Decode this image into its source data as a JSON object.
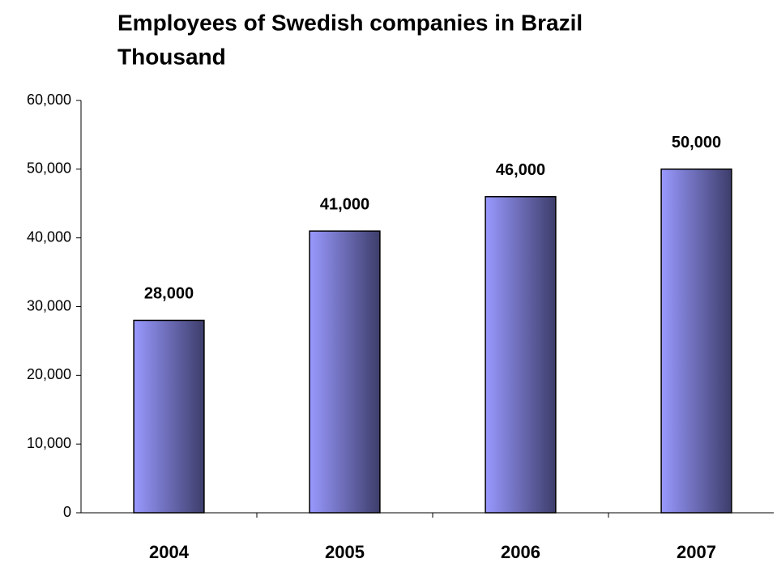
{
  "chart_data": {
    "type": "bar",
    "title": "Employees of Swedish companies in Brazil",
    "subtitle": "Thousand",
    "categories": [
      "2004",
      "2005",
      "2006",
      "2007"
    ],
    "values": [
      28000,
      41000,
      46000,
      50000
    ],
    "value_labels": [
      "28,000",
      "41,000",
      "46,000",
      "50,000"
    ],
    "color": "#9999ff",
    "ylim": [
      0,
      60000
    ],
    "yticks": [
      0,
      {
        "value": 10000,
        "label": "10,000"
      },
      {
        "value": 20000,
        "label": "20,000"
      },
      {
        "value": 30000,
        "label": "30,000"
      },
      {
        "value": 40000,
        "label": "40,000"
      },
      {
        "value": 50000,
        "label": "50,000"
      },
      {
        "value": 60000,
        "label": "60,000"
      }
    ],
    "grid": false
  }
}
